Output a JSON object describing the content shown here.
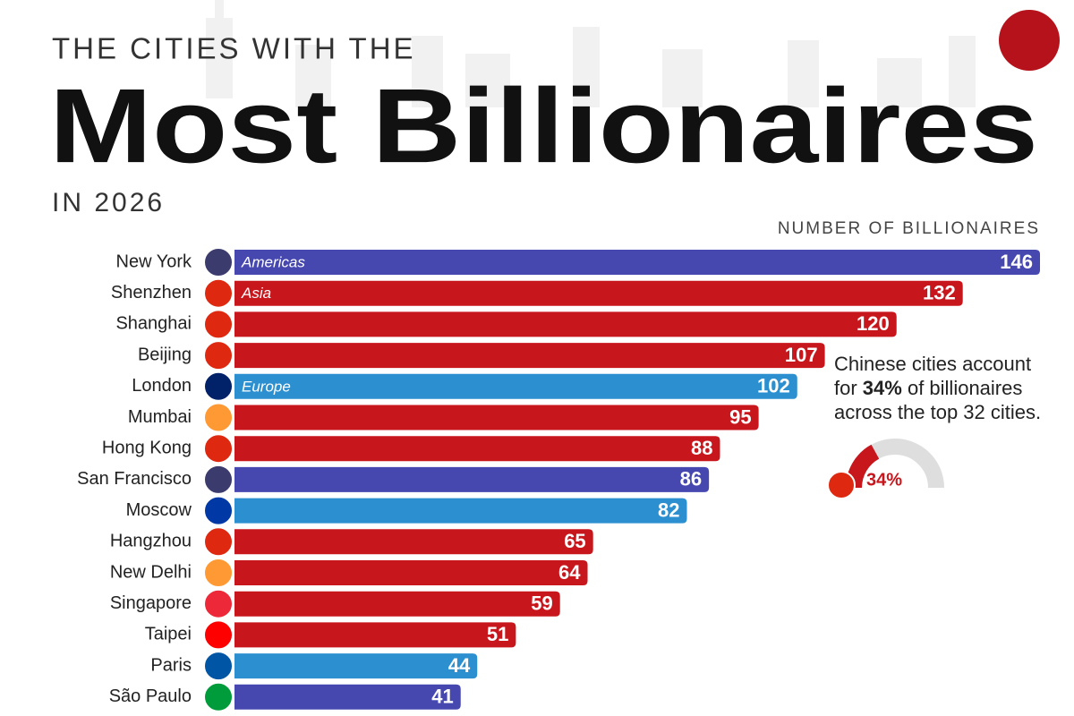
{
  "chart_data": {
    "type": "bar",
    "kicker": "THE CITIES WITH THE",
    "title": "Most Billionaires",
    "subtitle": "IN 2026",
    "axis_label": "NUMBER OF BILLIONAIRES",
    "categories": [
      "New York",
      "Shenzhen",
      "Shanghai",
      "Beijing",
      "London",
      "Mumbai",
      "Hong Kong",
      "San Francisco",
      "Moscow",
      "Hangzhou",
      "New Delhi",
      "Singapore",
      "Taipei",
      "Paris",
      "São Paulo"
    ],
    "series": [
      {
        "name": "Americas",
        "color": "#4648b0",
        "values": [
          146,
          null,
          null,
          null,
          null,
          null,
          null,
          86,
          null,
          null,
          null,
          null,
          null,
          null,
          41
        ]
      },
      {
        "name": "Asia",
        "color": "#c8161d",
        "values": [
          null,
          132,
          120,
          107,
          null,
          95,
          88,
          null,
          null,
          65,
          64,
          59,
          51,
          null,
          null
        ]
      },
      {
        "name": "Europe",
        "color": "#2b8fd0",
        "values": [
          null,
          null,
          null,
          null,
          102,
          null,
          null,
          null,
          82,
          null,
          null,
          null,
          null,
          44,
          null
        ]
      }
    ],
    "annotation": [
      [
        "Chinese cities account"
      ],
      [
        "for ",
        "34%",
        " of billionaires"
      ],
      [
        "across the top 32 cities."
      ]
    ],
    "gauge": {
      "value": 34,
      "label": "34%",
      "range": [
        0,
        100
      ],
      "color": "#c8161d"
    }
  }
}
